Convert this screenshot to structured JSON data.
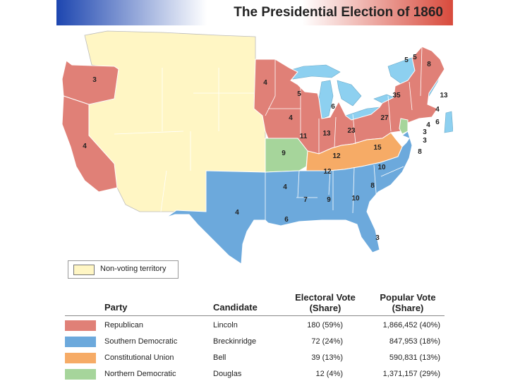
{
  "title": "The Presidential Election of 1860",
  "colors": {
    "republican": "#e08077",
    "southern_democratic": "#6ca9dc",
    "constitutional_union": "#f6ab66",
    "northern_democratic": "#a6d59b",
    "non_voting": "#fff6c4",
    "water": "#8dd0f0"
  },
  "map": {
    "state_labels": [
      "3",
      "4",
      "4",
      "5",
      "6",
      "4",
      "11",
      "9",
      "13",
      "23",
      "12",
      "12",
      "15",
      "27",
      "35",
      "4",
      "10",
      "7",
      "9",
      "10",
      "8",
      "4",
      "6",
      "3",
      "5",
      "5",
      "8",
      "13",
      "4",
      "6",
      "3",
      "4",
      "3",
      "8"
    ],
    "legend_label": "Non-voting territory"
  },
  "table": {
    "headers": {
      "party": "Party",
      "candidate": "Candidate",
      "electoral": "Electoral Vote (Share)",
      "popular": "Popular Vote (Share)"
    },
    "rows": [
      {
        "party": "Republican",
        "candidate": "Lincoln",
        "electoral": "180 (59%)",
        "popular": "1,866,452 (40%)",
        "color": "#e08077"
      },
      {
        "party": "Southern Democratic",
        "candidate": "Breckinridge",
        "electoral": "72 (24%)",
        "popular": "847,953 (18%)",
        "color": "#6ca9dc"
      },
      {
        "party": "Constitutional Union",
        "candidate": "Bell",
        "electoral": "39 (13%)",
        "popular": "590,831 (13%)",
        "color": "#f6ab66"
      },
      {
        "party": "Northern Democratic",
        "candidate": "Douglas",
        "electoral": "12 (4%)",
        "popular": "1,371,157 (29%)",
        "color": "#a6d59b"
      }
    ]
  }
}
